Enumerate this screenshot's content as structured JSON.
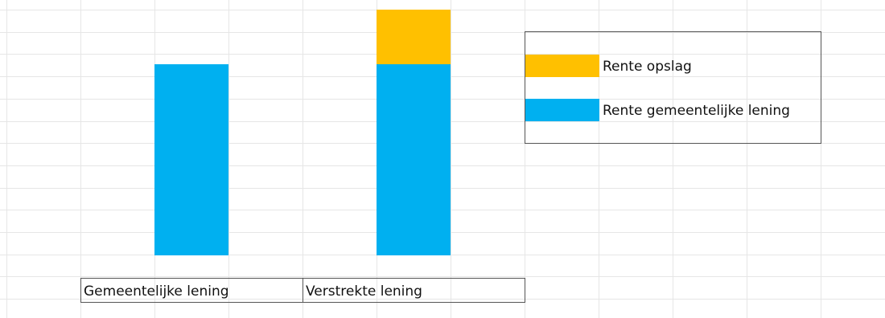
{
  "chart_data": {
    "type": "bar",
    "stacked": true,
    "categories": [
      "Gemeentelijke lening",
      "Verstrekte lening"
    ],
    "series": [
      {
        "name": "Rente gemeentelijke lening",
        "color": "#00b0f0",
        "values": [
          7,
          7
        ]
      },
      {
        "name": "Rente opslag",
        "color": "#ffc000",
        "values": [
          0,
          2
        ]
      }
    ],
    "ylim": [
      0,
      9
    ],
    "grid": true,
    "legend_position": "top-right"
  }
}
